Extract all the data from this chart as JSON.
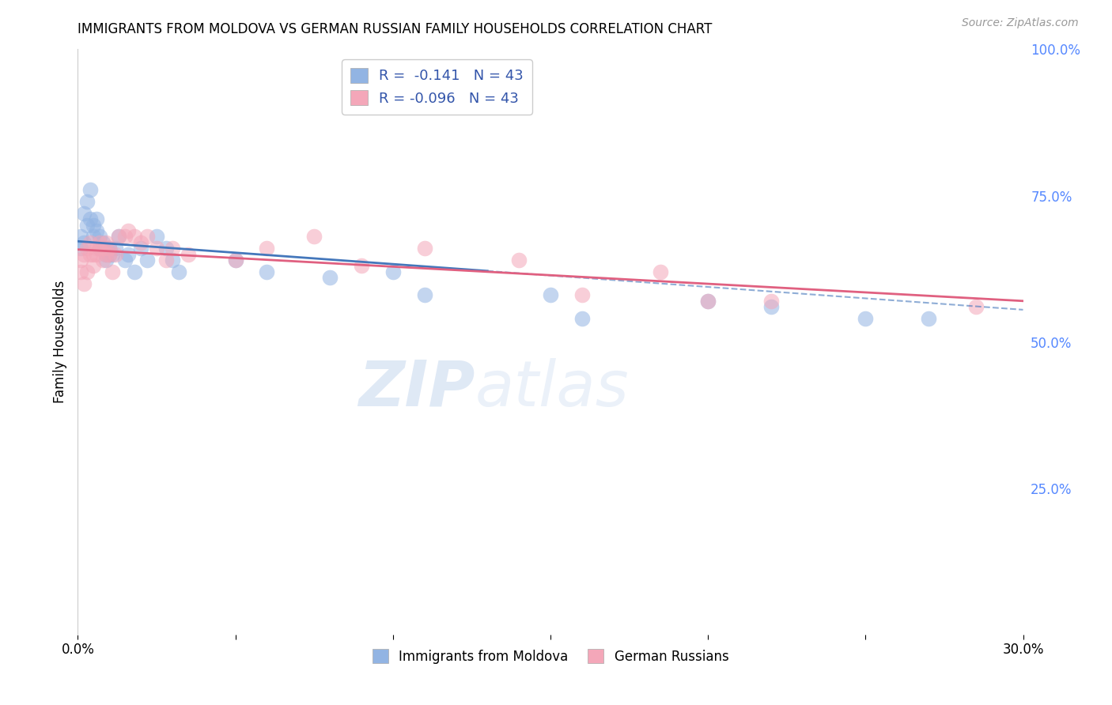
{
  "title": "IMMIGRANTS FROM MOLDOVA VS GERMAN RUSSIAN FAMILY HOUSEHOLDS CORRELATION CHART",
  "source": "Source: ZipAtlas.com",
  "ylabel": "Family Households",
  "x_min": 0.0,
  "x_max": 0.3,
  "y_min": 0.0,
  "y_max": 1.0,
  "color_moldova": "#92b4e3",
  "color_german": "#f4a7b9",
  "color_moldova_line": "#4477bb",
  "color_german_line": "#e06080",
  "color_right_axis": "#5588ff",
  "watermark_color": "#c8d8ee",
  "moldova_x": [
    0.001,
    0.001,
    0.002,
    0.002,
    0.003,
    0.003,
    0.004,
    0.004,
    0.005,
    0.005,
    0.006,
    0.006,
    0.007,
    0.007,
    0.008,
    0.008,
    0.009,
    0.009,
    0.01,
    0.01,
    0.011,
    0.012,
    0.013,
    0.015,
    0.016,
    0.018,
    0.02,
    0.022,
    0.025,
    0.028,
    0.03,
    0.032,
    0.05,
    0.06,
    0.08,
    0.1,
    0.11,
    0.15,
    0.16,
    0.2,
    0.22,
    0.25,
    0.27
  ],
  "moldova_y": [
    0.66,
    0.68,
    0.67,
    0.72,
    0.7,
    0.74,
    0.71,
    0.76,
    0.7,
    0.68,
    0.69,
    0.71,
    0.66,
    0.68,
    0.67,
    0.66,
    0.65,
    0.64,
    0.66,
    0.65,
    0.65,
    0.66,
    0.68,
    0.64,
    0.65,
    0.62,
    0.66,
    0.64,
    0.68,
    0.66,
    0.64,
    0.62,
    0.64,
    0.62,
    0.61,
    0.62,
    0.58,
    0.58,
    0.54,
    0.57,
    0.56,
    0.54,
    0.54
  ],
  "german_x": [
    0.001,
    0.001,
    0.002,
    0.002,
    0.003,
    0.003,
    0.004,
    0.004,
    0.005,
    0.005,
    0.006,
    0.006,
    0.007,
    0.007,
    0.008,
    0.008,
    0.009,
    0.009,
    0.01,
    0.01,
    0.011,
    0.012,
    0.013,
    0.015,
    0.016,
    0.018,
    0.02,
    0.022,
    0.025,
    0.028,
    0.03,
    0.035,
    0.05,
    0.06,
    0.075,
    0.09,
    0.11,
    0.14,
    0.16,
    0.185,
    0.2,
    0.22,
    0.285
  ],
  "german_y": [
    0.64,
    0.62,
    0.65,
    0.6,
    0.66,
    0.62,
    0.67,
    0.65,
    0.65,
    0.63,
    0.66,
    0.65,
    0.67,
    0.66,
    0.66,
    0.64,
    0.67,
    0.65,
    0.66,
    0.65,
    0.62,
    0.65,
    0.68,
    0.68,
    0.69,
    0.68,
    0.67,
    0.68,
    0.66,
    0.64,
    0.66,
    0.65,
    0.64,
    0.66,
    0.68,
    0.63,
    0.66,
    0.64,
    0.58,
    0.62,
    0.57,
    0.57,
    0.56
  ],
  "background_color": "#ffffff",
  "grid_color": "#cccccc"
}
